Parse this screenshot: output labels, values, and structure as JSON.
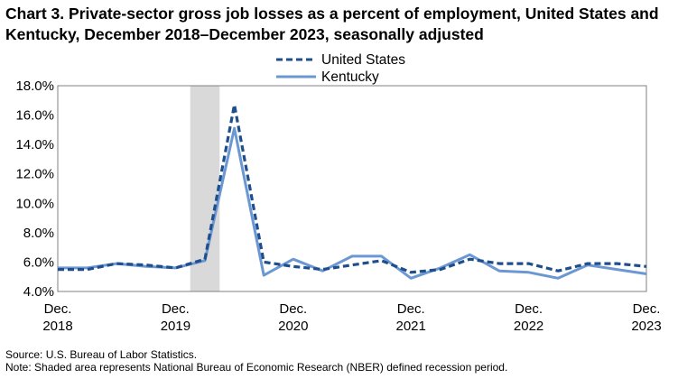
{
  "title": "Chart 3. Private-sector gross job losses as a percent of employment, United States and Kentucky, December 2018–December 2023, seasonally adjusted",
  "source": "Source: U.S. Bureau of Labor Statistics.",
  "note": "Note: Shaded area represents National Bureau of Economic Research (NBER) defined recession period.",
  "chart_data": {
    "type": "line",
    "title": "Chart 3. Private-sector gross job losses as a percent of employment, United States and Kentucky, December 2018–December 2023, seasonally adjusted",
    "xlabel": "",
    "ylabel": "",
    "x": [
      "Dec 2018",
      "Mar 2019",
      "Jun 2019",
      "Sep 2019",
      "Dec 2019",
      "Mar 2020",
      "Jun 2020",
      "Sep 2020",
      "Dec 2020",
      "Mar 2021",
      "Jun 2021",
      "Sep 2021",
      "Dec 2021",
      "Mar 2022",
      "Jun 2022",
      "Sep 2022",
      "Dec 2022",
      "Mar 2023",
      "Jun 2023",
      "Sep 2023",
      "Dec 2023"
    ],
    "x_tick_labels": [
      {
        "index": 0,
        "line1": "Dec.",
        "line2": "2018"
      },
      {
        "index": 4,
        "line1": "Dec.",
        "line2": "2019"
      },
      {
        "index": 8,
        "line1": "Dec.",
        "line2": "2020"
      },
      {
        "index": 12,
        "line1": "Dec.",
        "line2": "2021"
      },
      {
        "index": 16,
        "line1": "Dec.",
        "line2": "2022"
      },
      {
        "index": 20,
        "line1": "Dec.",
        "line2": "2023"
      }
    ],
    "y_tick_labels": [
      "4.0%",
      "6.0%",
      "8.0%",
      "10.0%",
      "12.0%",
      "14.0%",
      "16.0%",
      "18.0%"
    ],
    "ylim": [
      4.0,
      18.0
    ],
    "y_step": 2.0,
    "grid": false,
    "legend_position": "top-center",
    "recession_shade": {
      "start_index": 4.5,
      "end_index": 5.5,
      "color": "#d9d9d9"
    },
    "series": [
      {
        "name": "United States",
        "style": "dashed",
        "color": "#1f4e8c",
        "values": [
          5.5,
          5.5,
          5.9,
          5.8,
          5.6,
          6.2,
          16.7,
          6.0,
          5.7,
          5.5,
          5.8,
          6.1,
          5.3,
          5.5,
          6.2,
          5.9,
          5.9,
          5.4,
          5.9,
          5.9,
          5.7
        ]
      },
      {
        "name": "Kentucky",
        "style": "solid",
        "color": "#6b98d3",
        "values": [
          5.6,
          5.6,
          5.9,
          5.7,
          5.6,
          6.1,
          15.1,
          5.1,
          6.2,
          5.4,
          6.4,
          6.4,
          4.9,
          5.6,
          6.5,
          5.4,
          5.3,
          4.9,
          5.8,
          5.5,
          5.2
        ]
      }
    ]
  }
}
